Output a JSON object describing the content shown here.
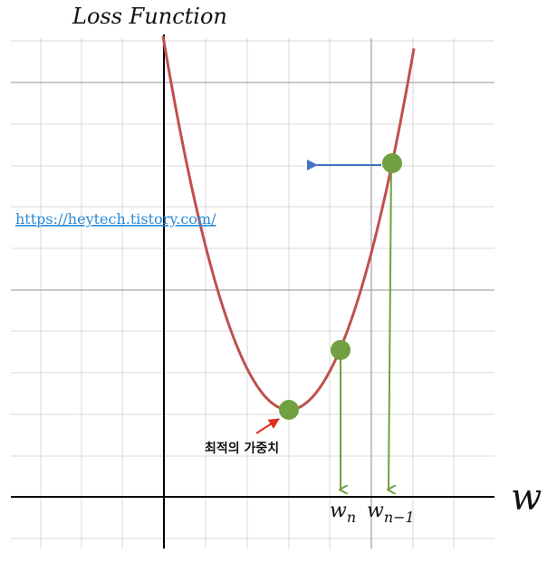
{
  "diagram": {
    "title": "Loss Function",
    "axis_label": "w",
    "url": "https://heytech.tistory.com/",
    "annotation": "최적의 가중치",
    "label_wn": {
      "base": "w",
      "sub": "n"
    },
    "label_wn1": {
      "base": "w",
      "sub": "n−1"
    },
    "colors": {
      "curve": "#c0504d",
      "point": "#70a040",
      "drop_arrow": "#70a040",
      "direction_arrow": "#4472c4",
      "annotation_arrow": "#e03020",
      "grid_minor": "#d9d9d9",
      "grid_major": "#a6a6a6",
      "axis": "#000000",
      "link": "#2a8bd8"
    }
  }
}
